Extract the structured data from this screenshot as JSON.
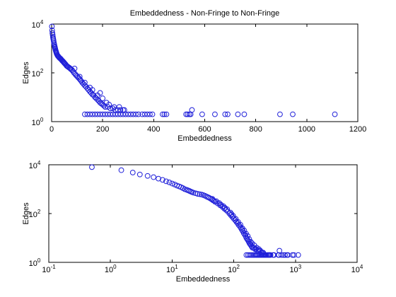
{
  "colors": {
    "marker": "#1f1fd9",
    "axis": "#000000",
    "background": "#ffffff"
  },
  "chart_data": [
    {
      "type": "scatter",
      "title": "Embeddedness - Non-Fringe to Non-Fringe",
      "xlabel": "Embeddedness",
      "ylabel": "Edges",
      "xscale": "linear",
      "yscale": "log",
      "xlim": [
        0,
        1200
      ],
      "ylim": [
        1,
        10000
      ],
      "grid": false,
      "marker": "circle-open",
      "xticks": [
        {
          "value": 0,
          "label": "0"
        },
        {
          "value": 200,
          "label": "200"
        },
        {
          "value": 400,
          "label": "400"
        },
        {
          "value": 600,
          "label": "600"
        },
        {
          "value": 800,
          "label": "800"
        },
        {
          "value": 1000,
          "label": "1000"
        },
        {
          "value": 1200,
          "label": "1200"
        }
      ],
      "yticks": [
        {
          "value": 1,
          "base": "10",
          "exp": "0"
        },
        {
          "value": 100,
          "base": "10",
          "exp": "2"
        },
        {
          "value": 10000,
          "base": "10",
          "exp": "4"
        }
      ],
      "points": [
        [
          1,
          8000
        ],
        [
          2,
          5500
        ],
        [
          3,
          4300
        ],
        [
          4,
          3600
        ],
        [
          5,
          3000
        ],
        [
          6,
          2600
        ],
        [
          7,
          2300
        ],
        [
          8,
          2000
        ],
        [
          9,
          1700
        ],
        [
          10,
          1500
        ],
        [
          11,
          1350
        ],
        [
          12,
          1200
        ],
        [
          13,
          1100
        ],
        [
          14,
          1000
        ],
        [
          15,
          900
        ],
        [
          16,
          820
        ],
        [
          17,
          760
        ],
        [
          18,
          700
        ],
        [
          19,
          650
        ],
        [
          20,
          600
        ],
        [
          22,
          540
        ],
        [
          24,
          500
        ],
        [
          26,
          470
        ],
        [
          28,
          450
        ],
        [
          30,
          420
        ],
        [
          32,
          400
        ],
        [
          34,
          390
        ],
        [
          36,
          370
        ],
        [
          38,
          350
        ],
        [
          40,
          330
        ],
        [
          42,
          310
        ],
        [
          44,
          300
        ],
        [
          46,
          280
        ],
        [
          48,
          270
        ],
        [
          50,
          250
        ],
        [
          52,
          240
        ],
        [
          55,
          220
        ],
        [
          58,
          200
        ],
        [
          60,
          190
        ],
        [
          63,
          180
        ],
        [
          66,
          170
        ],
        [
          70,
          160
        ],
        [
          73,
          150
        ],
        [
          76,
          140
        ],
        [
          80,
          130
        ],
        [
          84,
          115
        ],
        [
          88,
          100
        ],
        [
          92,
          90
        ],
        [
          96,
          80
        ],
        [
          100,
          72
        ],
        [
          104,
          65
        ],
        [
          108,
          58
        ],
        [
          112,
          52
        ],
        [
          116,
          46
        ],
        [
          120,
          40
        ],
        [
          125,
          35
        ],
        [
          130,
          30
        ],
        [
          135,
          27
        ],
        [
          140,
          23
        ],
        [
          145,
          20
        ],
        [
          150,
          17
        ],
        [
          155,
          15
        ],
        [
          160,
          13
        ],
        [
          165,
          12
        ],
        [
          170,
          10
        ],
        [
          175,
          9
        ],
        [
          180,
          8
        ],
        [
          185,
          7
        ],
        [
          190,
          6
        ],
        [
          195,
          5.5
        ],
        [
          200,
          5
        ],
        [
          205,
          4.5
        ],
        [
          210,
          4
        ],
        [
          220,
          4
        ],
        [
          230,
          3.5
        ],
        [
          240,
          3.5
        ],
        [
          250,
          3
        ],
        [
          260,
          3
        ],
        [
          270,
          3
        ],
        [
          280,
          3
        ],
        [
          90,
          150
        ],
        [
          110,
          70
        ],
        [
          130,
          40
        ],
        [
          150,
          25
        ],
        [
          160,
          20
        ],
        [
          180,
          12
        ],
        [
          200,
          9
        ],
        [
          190,
          15
        ],
        [
          215,
          6
        ],
        [
          225,
          5
        ],
        [
          245,
          4
        ],
        [
          265,
          4
        ],
        [
          285,
          3
        ],
        [
          130,
          2
        ],
        [
          140,
          2
        ],
        [
          150,
          2
        ],
        [
          160,
          2
        ],
        [
          170,
          2
        ],
        [
          180,
          2
        ],
        [
          190,
          2
        ],
        [
          200,
          2
        ],
        [
          210,
          2
        ],
        [
          220,
          2
        ],
        [
          230,
          2
        ],
        [
          240,
          2
        ],
        [
          250,
          2
        ],
        [
          260,
          2
        ],
        [
          270,
          2
        ],
        [
          280,
          2
        ],
        [
          290,
          2
        ],
        [
          300,
          2
        ],
        [
          310,
          2
        ],
        [
          320,
          2
        ],
        [
          330,
          2
        ],
        [
          340,
          2
        ],
        [
          355,
          2
        ],
        [
          365,
          2
        ],
        [
          375,
          2
        ],
        [
          385,
          2
        ],
        [
          395,
          2
        ],
        [
          435,
          2
        ],
        [
          442,
          2
        ],
        [
          450,
          2
        ],
        [
          527,
          2
        ],
        [
          533,
          2
        ],
        [
          540,
          2
        ],
        [
          545,
          2
        ],
        [
          550,
          3
        ],
        [
          590,
          2
        ],
        [
          640,
          2
        ],
        [
          680,
          2
        ],
        [
          690,
          2
        ],
        [
          730,
          2
        ],
        [
          755,
          2
        ],
        [
          895,
          2
        ],
        [
          945,
          2
        ],
        [
          1110,
          2
        ]
      ]
    },
    {
      "type": "scatter",
      "title": "",
      "xlabel": "Embeddedness",
      "ylabel": "Edges",
      "xscale": "log",
      "yscale": "log",
      "xlim": [
        0.1,
        10000
      ],
      "ylim": [
        1,
        10000
      ],
      "grid": false,
      "marker": "circle-open",
      "xticks": [
        {
          "value": 0.1,
          "base": "10",
          "exp": "-1"
        },
        {
          "value": 1,
          "base": "10",
          "exp": "0"
        },
        {
          "value": 10,
          "base": "10",
          "exp": "1"
        },
        {
          "value": 100,
          "base": "10",
          "exp": "2"
        },
        {
          "value": 1000,
          "base": "10",
          "exp": "3"
        },
        {
          "value": 10000,
          "base": "10",
          "exp": "4"
        }
      ],
      "yticks": [
        {
          "value": 1,
          "base": "10",
          "exp": "0"
        },
        {
          "value": 100,
          "base": "10",
          "exp": "2"
        },
        {
          "value": 10000,
          "base": "10",
          "exp": "4"
        }
      ],
      "points": [
        [
          0.5,
          8000
        ],
        [
          1.5,
          6000
        ],
        [
          2.3,
          4800
        ],
        [
          3,
          4000
        ],
        [
          4,
          3500
        ],
        [
          5,
          3100
        ],
        [
          6,
          2700
        ],
        [
          7,
          2400
        ],
        [
          8,
          2100
        ],
        [
          9,
          1900
        ],
        [
          10,
          1700
        ],
        [
          11,
          1550
        ],
        [
          12,
          1400
        ],
        [
          13,
          1300
        ],
        [
          14,
          1200
        ],
        [
          15,
          1100
        ],
        [
          16,
          1000
        ],
        [
          17,
          950
        ],
        [
          18,
          900
        ],
        [
          19,
          850
        ],
        [
          20,
          800
        ],
        [
          21,
          760
        ],
        [
          22,
          720
        ],
        [
          24,
          680
        ],
        [
          26,
          640
        ],
        [
          28,
          620
        ],
        [
          30,
          600
        ],
        [
          32,
          570
        ],
        [
          34,
          540
        ],
        [
          36,
          500
        ],
        [
          38,
          470
        ],
        [
          40,
          440
        ],
        [
          42,
          410
        ],
        [
          44,
          380
        ],
        [
          46,
          350
        ],
        [
          48,
          330
        ],
        [
          50,
          300
        ],
        [
          55,
          260
        ],
        [
          60,
          220
        ],
        [
          65,
          190
        ],
        [
          70,
          160
        ],
        [
          75,
          140
        ],
        [
          80,
          120
        ],
        [
          85,
          100
        ],
        [
          90,
          85
        ],
        [
          95,
          72
        ],
        [
          100,
          62
        ],
        [
          105,
          54
        ],
        [
          110,
          46
        ],
        [
          115,
          40
        ],
        [
          120,
          34
        ],
        [
          125,
          30
        ],
        [
          130,
          26
        ],
        [
          135,
          22
        ],
        [
          140,
          19
        ],
        [
          145,
          16
        ],
        [
          150,
          14
        ],
        [
          155,
          12
        ],
        [
          160,
          10
        ],
        [
          165,
          9
        ],
        [
          170,
          8
        ],
        [
          175,
          7
        ],
        [
          180,
          6
        ],
        [
          185,
          5.5
        ],
        [
          190,
          5
        ],
        [
          195,
          4.5
        ],
        [
          200,
          4
        ],
        [
          210,
          4
        ],
        [
          220,
          3.5
        ],
        [
          230,
          3.5
        ],
        [
          240,
          3
        ],
        [
          250,
          3
        ],
        [
          260,
          3
        ],
        [
          270,
          3
        ],
        [
          280,
          2.5
        ],
        [
          290,
          2.5
        ],
        [
          300,
          2.5
        ],
        [
          45,
          400
        ],
        [
          52,
          320
        ],
        [
          58,
          270
        ],
        [
          62,
          230
        ],
        [
          68,
          200
        ],
        [
          72,
          170
        ],
        [
          78,
          150
        ],
        [
          88,
          110
        ],
        [
          92,
          95
        ],
        [
          98,
          80
        ],
        [
          108,
          60
        ],
        [
          118,
          45
        ],
        [
          128,
          35
        ],
        [
          138,
          25
        ],
        [
          148,
          20
        ],
        [
          158,
          15
        ],
        [
          168,
          12
        ],
        [
          178,
          9
        ],
        [
          188,
          7
        ],
        [
          198,
          6
        ],
        [
          215,
          5
        ],
        [
          235,
          4
        ],
        [
          255,
          3.5
        ],
        [
          160,
          2
        ],
        [
          170,
          2
        ],
        [
          180,
          2
        ],
        [
          190,
          2
        ],
        [
          200,
          2
        ],
        [
          210,
          2
        ],
        [
          220,
          2
        ],
        [
          230,
          2
        ],
        [
          240,
          2
        ],
        [
          250,
          2
        ],
        [
          260,
          2
        ],
        [
          270,
          2
        ],
        [
          280,
          2
        ],
        [
          290,
          2
        ],
        [
          300,
          2
        ],
        [
          310,
          2
        ],
        [
          320,
          2
        ],
        [
          330,
          2
        ],
        [
          340,
          2
        ],
        [
          355,
          2
        ],
        [
          365,
          2
        ],
        [
          375,
          2
        ],
        [
          385,
          2
        ],
        [
          395,
          2
        ],
        [
          435,
          2
        ],
        [
          450,
          2
        ],
        [
          530,
          2
        ],
        [
          540,
          2
        ],
        [
          550,
          3
        ],
        [
          590,
          2
        ],
        [
          640,
          2
        ],
        [
          680,
          2
        ],
        [
          730,
          2
        ],
        [
          755,
          2
        ],
        [
          895,
          2
        ],
        [
          945,
          2
        ],
        [
          1110,
          2
        ]
      ]
    }
  ]
}
